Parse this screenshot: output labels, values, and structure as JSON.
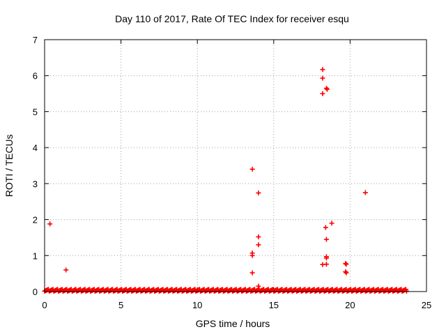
{
  "chart_data": {
    "type": "scatter",
    "title": "Day 110 of 2017, Rate Of TEC Index for receiver esqu",
    "xlabel": "GPS time / hours",
    "ylabel": "ROTI / TECUs",
    "xlim": [
      0,
      25
    ],
    "ylim": [
      0,
      7
    ],
    "xticks": [
      0,
      5,
      10,
      15,
      20,
      25
    ],
    "yticks": [
      0,
      1,
      2,
      3,
      4,
      5,
      6,
      7
    ],
    "grid": true,
    "marker": "plus",
    "color": "#ff0000",
    "baseline": {
      "x_start": 0.0,
      "x_end": 23.7,
      "x_step": 0.05,
      "y_values": [
        0.01,
        0.02,
        0.03,
        0.04,
        0.05,
        0.06
      ]
    },
    "points": [
      {
        "x": 0.35,
        "y": 1.88
      },
      {
        "x": 1.4,
        "y": 0.6
      },
      {
        "x": 13.6,
        "y": 3.4
      },
      {
        "x": 14.0,
        "y": 2.74
      },
      {
        "x": 14.0,
        "y": 1.52
      },
      {
        "x": 14.0,
        "y": 1.3
      },
      {
        "x": 13.6,
        "y": 1.07
      },
      {
        "x": 13.6,
        "y": 1.0
      },
      {
        "x": 13.6,
        "y": 0.52
      },
      {
        "x": 14.0,
        "y": 0.15
      },
      {
        "x": 18.2,
        "y": 6.17
      },
      {
        "x": 18.2,
        "y": 5.93
      },
      {
        "x": 18.45,
        "y": 5.65
      },
      {
        "x": 18.5,
        "y": 5.62
      },
      {
        "x": 18.2,
        "y": 5.5
      },
      {
        "x": 18.8,
        "y": 1.9
      },
      {
        "x": 18.4,
        "y": 1.78
      },
      {
        "x": 18.45,
        "y": 1.45
      },
      {
        "x": 18.45,
        "y": 0.97
      },
      {
        "x": 18.45,
        "y": 0.93
      },
      {
        "x": 18.2,
        "y": 0.75
      },
      {
        "x": 18.45,
        "y": 0.76
      },
      {
        "x": 19.7,
        "y": 0.78
      },
      {
        "x": 19.75,
        "y": 0.76
      },
      {
        "x": 19.7,
        "y": 0.55
      },
      {
        "x": 19.75,
        "y": 0.52
      },
      {
        "x": 21.0,
        "y": 2.75
      }
    ]
  }
}
